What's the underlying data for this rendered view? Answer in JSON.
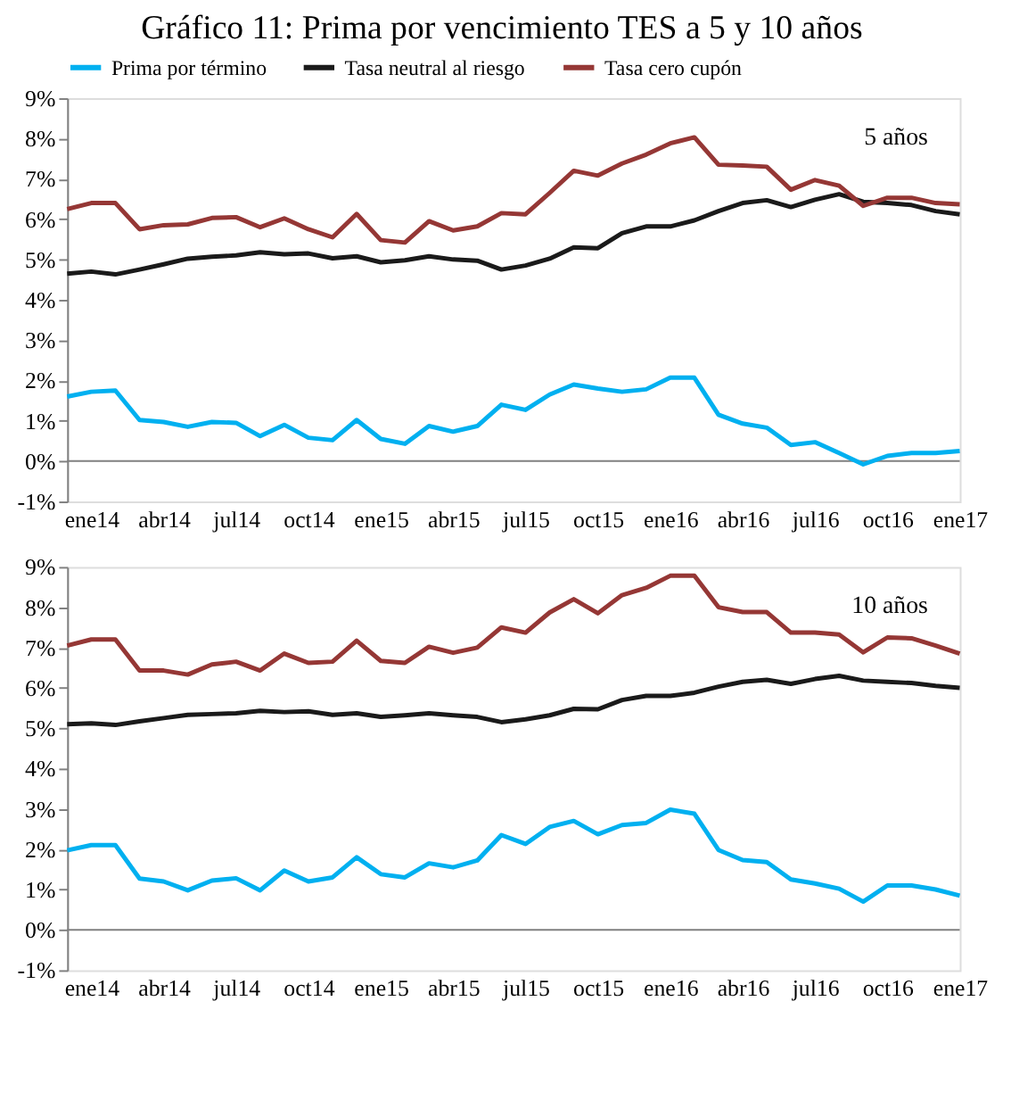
{
  "chart_data": [
    {
      "type": "line",
      "title": "Gráfico 11: Prima por vencimiento TES a 5 y 10 años",
      "legend": "top",
      "grid": false,
      "annotations": [
        "5 años"
      ],
      "categories": [
        null,
        "ene14",
        null,
        null,
        "abr14",
        null,
        null,
        "jul14",
        null,
        null,
        "oct14",
        null,
        null,
        "ene15",
        null,
        null,
        "abr15",
        null,
        null,
        "jul15",
        null,
        null,
        "oct15",
        null,
        null,
        "ene16",
        null,
        null,
        "abr16",
        null,
        null,
        "jul16",
        null,
        null,
        "oct16",
        null,
        null,
        "ene17"
      ],
      "ylim": [
        -1,
        9
      ],
      "yticks": [
        {
          "value": -1,
          "label": "-1%"
        },
        {
          "value": 0,
          "label": "0%"
        },
        {
          "value": 1,
          "label": "1%"
        },
        {
          "value": 2,
          "label": "2%"
        },
        {
          "value": 3,
          "label": "3%"
        },
        {
          "value": 4,
          "label": "4%"
        },
        {
          "value": 5,
          "label": "5%"
        },
        {
          "value": 6,
          "label": "6%"
        },
        {
          "value": 7,
          "label": "7%"
        },
        {
          "value": 8,
          "label": "8%"
        },
        {
          "value": 9,
          "label": "9%"
        }
      ],
      "ref_lines": [
        {
          "axis": "y",
          "value": 0,
          "color": "#808080"
        }
      ],
      "series": [
        {
          "name": "Prima por término",
          "color": "#00b0f0",
          "values": [
            1.6,
            1.72,
            1.75,
            1.02,
            0.97,
            0.85,
            0.97,
            0.95,
            0.62,
            0.9,
            0.58,
            0.52,
            1.02,
            0.55,
            0.43,
            0.87,
            0.73,
            0.87,
            1.4,
            1.27,
            1.65,
            1.9,
            1.8,
            1.72,
            1.78,
            2.07,
            2.07,
            1.15,
            0.93,
            0.83,
            0.4,
            0.47,
            0.2,
            -0.08,
            0.13,
            0.2,
            0.2,
            0.25
          ]
        },
        {
          "name": "Tasa neutral al riesgo",
          "color": "#1a1a1a",
          "values": [
            4.65,
            4.7,
            4.63,
            4.75,
            4.88,
            5.02,
            5.07,
            5.1,
            5.18,
            5.13,
            5.15,
            5.03,
            5.08,
            4.93,
            4.98,
            5.08,
            5.0,
            4.97,
            4.75,
            4.85,
            5.02,
            5.3,
            5.28,
            5.65,
            5.82,
            5.82,
            5.97,
            6.2,
            6.4,
            6.47,
            6.3,
            6.48,
            6.62,
            6.43,
            6.4,
            6.35,
            6.2,
            6.12
          ]
        },
        {
          "name": "Tasa cero cupón",
          "color": "#953735",
          "values": [
            6.25,
            6.4,
            6.4,
            5.75,
            5.85,
            5.87,
            6.03,
            6.05,
            5.8,
            6.02,
            5.75,
            5.55,
            6.13,
            5.48,
            5.42,
            5.95,
            5.72,
            5.82,
            6.15,
            6.12,
            6.65,
            7.2,
            7.08,
            7.38,
            7.6,
            7.88,
            8.03,
            7.35,
            7.33,
            7.3,
            6.73,
            6.97,
            6.83,
            6.33,
            6.53,
            6.53,
            6.4,
            6.37
          ]
        }
      ]
    },
    {
      "type": "line",
      "legend": false,
      "grid": false,
      "annotations": [
        "10 años"
      ],
      "categories": [
        null,
        "ene14",
        null,
        null,
        "abr14",
        null,
        null,
        "jul14",
        null,
        null,
        "oct14",
        null,
        null,
        "ene15",
        null,
        null,
        "abr15",
        null,
        null,
        "jul15",
        null,
        null,
        "oct15",
        null,
        null,
        "ene16",
        null,
        null,
        "abr16",
        null,
        null,
        "jul16",
        null,
        null,
        "oct16",
        null,
        null,
        "ene17"
      ],
      "ylim": [
        -1,
        9
      ],
      "yticks": [
        {
          "value": -1,
          "label": "-1%"
        },
        {
          "value": 0,
          "label": "0%"
        },
        {
          "value": 1,
          "label": "1%"
        },
        {
          "value": 2,
          "label": "2%"
        },
        {
          "value": 3,
          "label": "3%"
        },
        {
          "value": 4,
          "label": "4%"
        },
        {
          "value": 5,
          "label": "5%"
        },
        {
          "value": 6,
          "label": "6%"
        },
        {
          "value": 7,
          "label": "7%"
        },
        {
          "value": 8,
          "label": "8%"
        },
        {
          "value": 9,
          "label": "9%"
        }
      ],
      "ref_lines": [
        {
          "axis": "y",
          "value": 0,
          "color": "#808080"
        }
      ],
      "series": [
        {
          "name": "Prima por término",
          "color": "#00b0f0",
          "values": [
            1.97,
            2.1,
            2.1,
            1.27,
            1.2,
            0.98,
            1.22,
            1.28,
            0.98,
            1.47,
            1.2,
            1.3,
            1.8,
            1.38,
            1.3,
            1.65,
            1.55,
            1.72,
            2.35,
            2.13,
            2.55,
            2.7,
            2.37,
            2.6,
            2.65,
            2.98,
            2.88,
            1.98,
            1.73,
            1.68,
            1.25,
            1.15,
            1.02,
            0.7,
            1.1,
            1.1,
            1.0,
            0.85
          ]
        },
        {
          "name": "Tasa neutral al riesgo",
          "color": "#1a1a1a",
          "values": [
            5.1,
            5.12,
            5.08,
            5.17,
            5.25,
            5.33,
            5.35,
            5.37,
            5.43,
            5.4,
            5.42,
            5.33,
            5.37,
            5.28,
            5.32,
            5.37,
            5.32,
            5.28,
            5.15,
            5.22,
            5.32,
            5.48,
            5.47,
            5.7,
            5.8,
            5.8,
            5.88,
            6.03,
            6.15,
            6.2,
            6.1,
            6.22,
            6.3,
            6.18,
            6.15,
            6.12,
            6.05,
            6.0
          ]
        },
        {
          "name": "Tasa cero cupón",
          "color": "#953735",
          "values": [
            7.05,
            7.2,
            7.2,
            6.43,
            6.43,
            6.33,
            6.58,
            6.65,
            6.43,
            6.85,
            6.62,
            6.65,
            7.17,
            6.67,
            6.62,
            7.02,
            6.87,
            7.0,
            7.5,
            7.37,
            7.87,
            8.2,
            7.85,
            8.3,
            8.48,
            8.78,
            8.78,
            8.0,
            7.88,
            7.88,
            7.37,
            7.37,
            7.32,
            6.88,
            7.25,
            7.23,
            7.05,
            6.85
          ]
        }
      ]
    }
  ]
}
